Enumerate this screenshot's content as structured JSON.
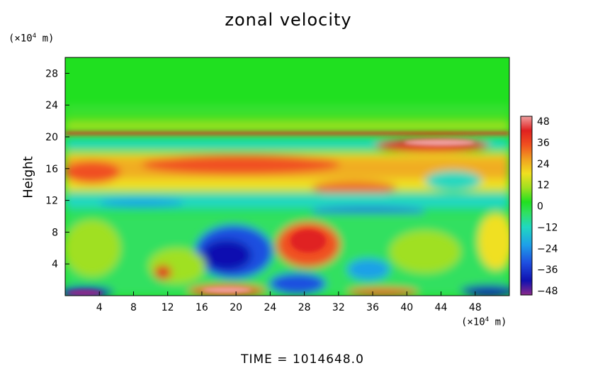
{
  "title": "zonal velocity",
  "y_unit_prefix": "(×10",
  "y_unit_exp": "4",
  "y_unit_suffix": " m)",
  "x_unit_prefix": "(×10",
  "x_unit_exp": "4",
  "x_unit_suffix": " m)",
  "time_label": "TIME  =  1014648.0",
  "chart_data": {
    "type": "heatmap",
    "title": "zonal velocity",
    "xlabel": "",
    "ylabel": "Height",
    "x_unit": "(×10⁴ m)",
    "y_unit": "(×10⁴ m)",
    "xlim": [
      0,
      52
    ],
    "ylim": [
      0,
      30
    ],
    "x_ticks": [
      "4",
      "8",
      "12",
      "16",
      "20",
      "24",
      "28",
      "32",
      "36",
      "40",
      "44",
      "48"
    ],
    "y_ticks": [
      "4",
      "8",
      "12",
      "16",
      "20",
      "24",
      "28"
    ],
    "colorbar": {
      "min": -48,
      "max": 48,
      "ticks": [
        "48",
        "36",
        "24",
        "12",
        "0",
        "−12",
        "−24",
        "−36",
        "−48"
      ],
      "colors": [
        "#8b2a8b",
        "#1010b0",
        "#1e4fe0",
        "#1ea0e8",
        "#20d8c0",
        "#30e060",
        "#20e020",
        "#a0e020",
        "#f0e020",
        "#f0a020",
        "#f05020",
        "#e02020",
        "#f0a0a0"
      ]
    },
    "features": [
      {
        "region": "upper layer",
        "y_range": [
          21,
          30
        ],
        "value_approx": 0
      },
      {
        "region": "jet band",
        "y_range": [
          14,
          17.5
        ],
        "value_approx": 30
      },
      {
        "region": "sharp band",
        "y_range": [
          20,
          20.5
        ],
        "value_approx": 40
      },
      {
        "region": "lower negative cell",
        "x_range": [
          17,
          23
        ],
        "y_range": [
          3,
          8
        ],
        "value_approx": -36
      },
      {
        "region": "lower positive cell",
        "x_range": [
          26,
          31
        ],
        "y_range": [
          4,
          8
        ],
        "value_approx": 36
      }
    ]
  }
}
